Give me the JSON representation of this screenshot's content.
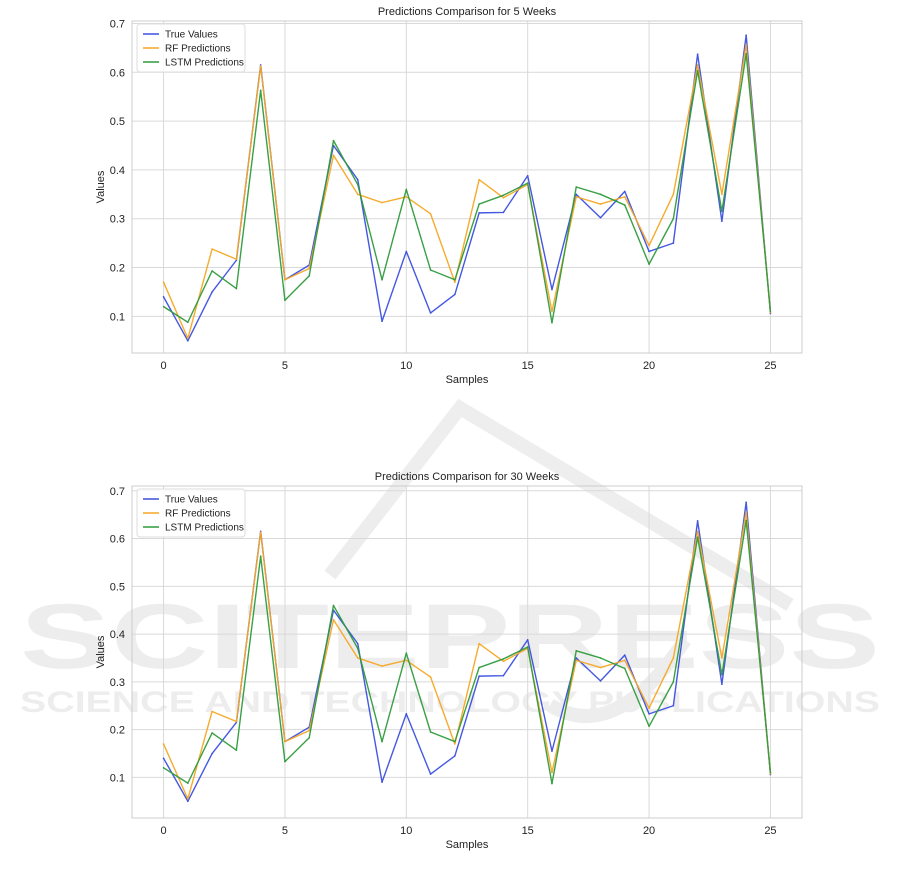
{
  "watermark": {
    "line1": "SCITEPRESS",
    "line2": "SCIENCE AND TECHNOLOGY PUBLICATIONS"
  },
  "colors": {
    "true": "#3b4fe0",
    "rf": "#f5a623",
    "lstm": "#2e9b3b",
    "grid": "#d9d9d9",
    "axis": "#cccccc"
  },
  "chart_data": [
    {
      "type": "line",
      "title": "Predictions Comparison for 5 Weeks",
      "xlabel": "Samples",
      "ylabel": "Values",
      "xlim": [
        -1.3,
        26.3
      ],
      "ylim": [
        0.025,
        0.705
      ],
      "xticks": [
        0,
        5,
        10,
        15,
        20,
        25
      ],
      "yticks": [
        0.1,
        0.2,
        0.3,
        0.4,
        0.5,
        0.6,
        0.7
      ],
      "grid": true,
      "legend": "top-left",
      "x": [
        0,
        1,
        2,
        3,
        4,
        5,
        6,
        7,
        8,
        9,
        10,
        11,
        12,
        13,
        14,
        15,
        16,
        17,
        18,
        19,
        20,
        21,
        22,
        23,
        24,
        25
      ],
      "series": [
        {
          "name": "True Values",
          "color_key": "true",
          "values": [
            0.14,
            0.05,
            0.15,
            0.215,
            0.615,
            0.175,
            0.205,
            0.45,
            0.38,
            0.09,
            0.233,
            0.107,
            0.145,
            0.312,
            0.313,
            0.388,
            0.155,
            0.35,
            0.302,
            0.356,
            0.233,
            0.25,
            0.637,
            0.295,
            0.676,
            0.106
          ]
        },
        {
          "name": "RF Predictions",
          "color_key": "rf",
          "values": [
            0.17,
            0.055,
            0.238,
            0.217,
            0.613,
            0.175,
            0.198,
            0.43,
            0.35,
            0.333,
            0.345,
            0.31,
            0.17,
            0.38,
            0.343,
            0.37,
            0.11,
            0.345,
            0.33,
            0.345,
            0.245,
            0.35,
            0.615,
            0.35,
            0.656,
            0.108
          ]
        },
        {
          "name": "LSTM Predictions",
          "color_key": "lstm",
          "values": [
            0.12,
            0.088,
            0.193,
            0.157,
            0.563,
            0.133,
            0.183,
            0.46,
            0.37,
            0.175,
            0.36,
            0.195,
            0.175,
            0.33,
            0.348,
            0.373,
            0.087,
            0.365,
            0.35,
            0.328,
            0.207,
            0.3,
            0.603,
            0.315,
            0.638,
            0.11
          ]
        }
      ]
    },
    {
      "type": "line",
      "title": "Predictions Comparison for 30 Weeks",
      "xlabel": "Samples",
      "ylabel": "Values",
      "xlim": [
        -1.3,
        26.3
      ],
      "ylim": [
        0.015,
        0.71
      ],
      "xticks": [
        0,
        5,
        10,
        15,
        20,
        25
      ],
      "yticks": [
        0.1,
        0.2,
        0.3,
        0.4,
        0.5,
        0.6,
        0.7
      ],
      "grid": true,
      "legend": "top-left",
      "x": [
        0,
        1,
        2,
        3,
        4,
        5,
        6,
        7,
        8,
        9,
        10,
        11,
        12,
        13,
        14,
        15,
        16,
        17,
        18,
        19,
        20,
        21,
        22,
        23,
        24,
        25
      ],
      "series": [
        {
          "name": "True Values",
          "color_key": "true",
          "values": [
            0.14,
            0.05,
            0.15,
            0.215,
            0.615,
            0.175,
            0.205,
            0.45,
            0.38,
            0.09,
            0.233,
            0.107,
            0.145,
            0.312,
            0.313,
            0.388,
            0.155,
            0.35,
            0.302,
            0.356,
            0.233,
            0.25,
            0.637,
            0.295,
            0.676,
            0.106
          ]
        },
        {
          "name": "RF Predictions",
          "color_key": "rf",
          "values": [
            0.17,
            0.055,
            0.238,
            0.217,
            0.613,
            0.175,
            0.198,
            0.43,
            0.35,
            0.333,
            0.345,
            0.31,
            0.17,
            0.38,
            0.343,
            0.37,
            0.11,
            0.345,
            0.33,
            0.345,
            0.245,
            0.35,
            0.615,
            0.35,
            0.656,
            0.108
          ]
        },
        {
          "name": "LSTM Predictions",
          "color_key": "lstm",
          "values": [
            0.12,
            0.088,
            0.193,
            0.157,
            0.563,
            0.133,
            0.183,
            0.46,
            0.37,
            0.175,
            0.36,
            0.195,
            0.175,
            0.33,
            0.348,
            0.373,
            0.087,
            0.365,
            0.35,
            0.328,
            0.207,
            0.3,
            0.603,
            0.315,
            0.638,
            0.11
          ]
        }
      ]
    }
  ]
}
